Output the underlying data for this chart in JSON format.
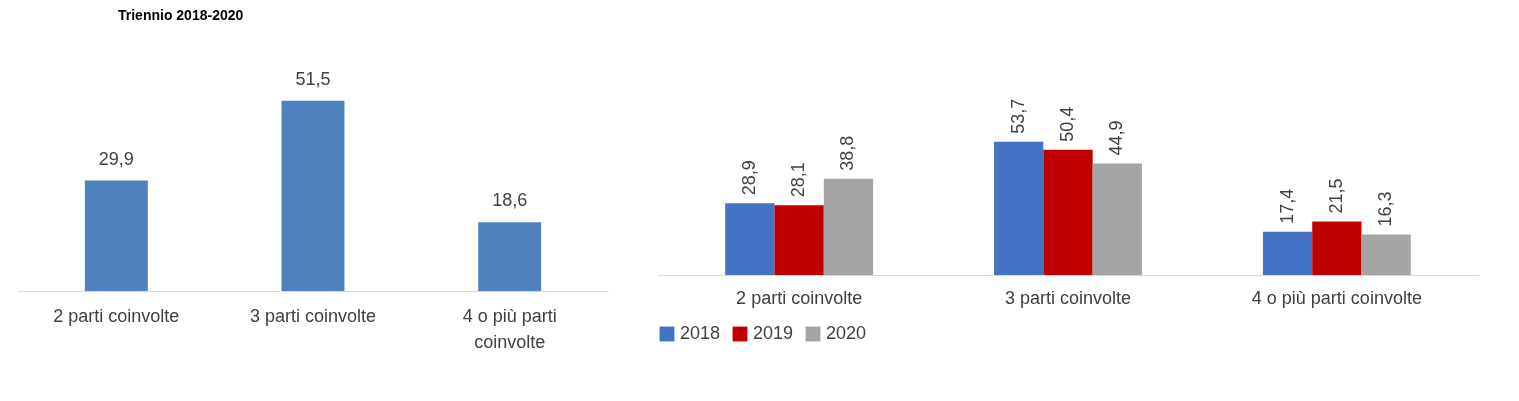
{
  "chart_data": [
    {
      "type": "bar",
      "title": "Triennio 2018-2020",
      "categories": [
        "2 parti coinvolte",
        "3 parti coinvolte",
        "4 o più parti coinvolte"
      ],
      "values": [
        29.9,
        51.5,
        18.6
      ],
      "value_labels": [
        "29,9",
        "51,5",
        "18,6"
      ],
      "color": "#4f81bd"
    },
    {
      "type": "bar",
      "categories": [
        "2 parti coinvolte",
        "3 parti coinvolte",
        "4 o più parti coinvolte"
      ],
      "legend": "bottom",
      "series": [
        {
          "name": "2018",
          "color": "#4472c4",
          "values": [
            28.9,
            53.7,
            17.4
          ],
          "value_labels": [
            "28,9",
            "53,7",
            "17,4"
          ]
        },
        {
          "name": "2019",
          "color": "#c00000",
          "values": [
            28.1,
            50.4,
            21.5
          ],
          "value_labels": [
            "28,1",
            "50,4",
            "21,5"
          ]
        },
        {
          "name": "2020",
          "color": "#a5a5a5",
          "values": [
            38.8,
            44.9,
            16.3
          ],
          "value_labels": [
            "38,8",
            "44,9",
            "16,3"
          ]
        }
      ]
    }
  ]
}
